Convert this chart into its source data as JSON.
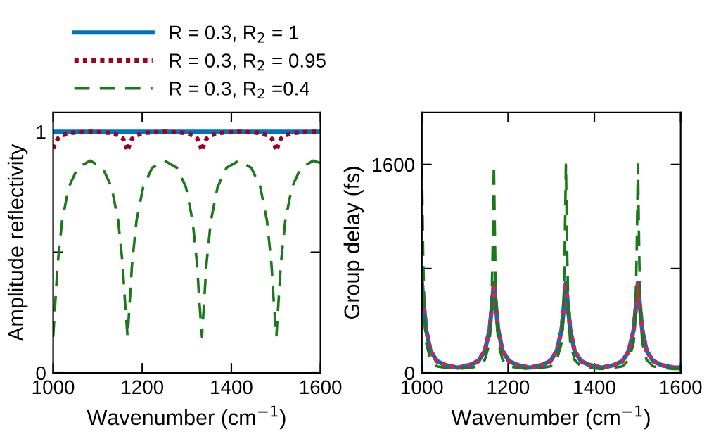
{
  "chart_data": [
    {
      "type": "line",
      "ylabel": "Amplitude reflectivity",
      "xlabel": "Wavenumber (cm$^{−1}$)",
      "xlim": [
        1000,
        1600
      ],
      "xticks": [
        1000,
        1200,
        1400,
        1600
      ],
      "ylim": [
        0,
        1.08
      ],
      "yticks": [
        0,
        {
          "value": 0.5,
          "label": null
        },
        1
      ],
      "grid": false,
      "legend": "top",
      "series": [
        {
          "name": "R = 0.3, R$_{2}$ = 1",
          "color": "#0070c0",
          "line_style": "solid",
          "x": [
            1000,
            1600
          ],
          "values": [
            1,
            1
          ]
        },
        {
          "name": "R = 0.3, R$_{2}$ = 0.95",
          "color": "#a00020",
          "line_style": "dotted",
          "x": [
            1000,
            1010,
            1020,
            1040,
            1083,
            1127,
            1147,
            1157,
            1162,
            1167,
            1172,
            1177,
            1187,
            1207,
            1250,
            1294,
            1314,
            1324,
            1329,
            1334,
            1339,
            1344,
            1354,
            1374,
            1417,
            1461,
            1481,
            1491,
            1496,
            1501,
            1506,
            1511,
            1521,
            1541,
            1584,
            1600
          ],
          "values": [
            0.93,
            0.97,
            0.985,
            0.995,
            1,
            0.995,
            0.985,
            0.97,
            0.95,
            0.92,
            0.95,
            0.97,
            0.985,
            0.995,
            1,
            0.995,
            0.985,
            0.97,
            0.95,
            0.92,
            0.95,
            0.97,
            0.985,
            0.995,
            1,
            0.995,
            0.985,
            0.97,
            0.95,
            0.92,
            0.95,
            0.97,
            0.985,
            0.995,
            1,
            1
          ]
        },
        {
          "name": "R = 0.3, R$_{2}$ =0.4",
          "color": "#1a7a1a",
          "line_style": "dashed",
          "x": [
            1000,
            1005,
            1010,
            1020,
            1035,
            1055,
            1083,
            1111,
            1131,
            1146,
            1156,
            1161,
            1167,
            1172,
            1177,
            1187,
            1202,
            1222,
            1250,
            1278,
            1298,
            1313,
            1323,
            1328,
            1334,
            1339,
            1344,
            1354,
            1369,
            1389,
            1417,
            1445,
            1465,
            1480,
            1490,
            1495,
            1501,
            1506,
            1511,
            1521,
            1536,
            1556,
            1584,
            1600
          ],
          "values": [
            0.15,
            0.3,
            0.45,
            0.63,
            0.77,
            0.85,
            0.88,
            0.85,
            0.77,
            0.63,
            0.45,
            0.3,
            0.15,
            0.3,
            0.45,
            0.63,
            0.77,
            0.85,
            0.88,
            0.85,
            0.77,
            0.63,
            0.45,
            0.3,
            0.15,
            0.3,
            0.45,
            0.63,
            0.77,
            0.85,
            0.88,
            0.85,
            0.77,
            0.63,
            0.45,
            0.3,
            0.15,
            0.3,
            0.45,
            0.63,
            0.77,
            0.85,
            0.88,
            0.87
          ]
        }
      ]
    },
    {
      "type": "line",
      "ylabel": "Group delay (fs)",
      "xlabel": "Wavenumber (cm$^{−1}$)",
      "xlim": [
        1000,
        1600
      ],
      "xticks": [
        1000,
        1200,
        1400,
        1600
      ],
      "ylim": [
        0,
        2000
      ],
      "yticks": [
        0,
        {
          "value": 800,
          "label": null
        },
        1600
      ],
      "grid": false,
      "series": [
        {
          "color": "#0070c0",
          "line_style": "solid",
          "x": [
            1000,
            1005,
            1010,
            1020,
            1035,
            1055,
            1083,
            1111,
            1131,
            1146,
            1157,
            1162,
            1167,
            1172,
            1177,
            1187,
            1202,
            1222,
            1250,
            1278,
            1298,
            1313,
            1324,
            1329,
            1334,
            1339,
            1344,
            1354,
            1369,
            1389,
            1417,
            1445,
            1465,
            1480,
            1491,
            1496,
            1501,
            1506,
            1511,
            1521,
            1536,
            1556,
            1584,
            1600
          ],
          "values": [
            690,
            500,
            330,
            170,
            90,
            60,
            40,
            60,
            90,
            170,
            330,
            500,
            690,
            500,
            330,
            170,
            90,
            60,
            40,
            60,
            90,
            170,
            330,
            500,
            690,
            500,
            330,
            170,
            90,
            60,
            40,
            60,
            90,
            170,
            330,
            500,
            690,
            500,
            330,
            170,
            90,
            60,
            40,
            40
          ]
        },
        {
          "color": "#e02040",
          "line_style": "dotted",
          "x": [
            1000,
            1005,
            1010,
            1020,
            1035,
            1055,
            1083,
            1111,
            1131,
            1146,
            1157,
            1162,
            1167,
            1172,
            1177,
            1187,
            1202,
            1222,
            1250,
            1278,
            1298,
            1313,
            1324,
            1329,
            1334,
            1339,
            1344,
            1354,
            1369,
            1389,
            1417,
            1445,
            1465,
            1480,
            1491,
            1496,
            1501,
            1506,
            1511,
            1521,
            1536,
            1556,
            1584,
            1600
          ],
          "values": [
            690,
            500,
            330,
            170,
            90,
            60,
            40,
            60,
            90,
            170,
            330,
            500,
            690,
            500,
            330,
            170,
            90,
            60,
            40,
            60,
            90,
            170,
            330,
            500,
            690,
            500,
            330,
            170,
            90,
            60,
            40,
            60,
            90,
            170,
            330,
            500,
            690,
            500,
            330,
            170,
            90,
            60,
            40,
            40
          ]
        },
        {
          "color": "#1a7a1a",
          "line_style": "dashed",
          "x": [
            1000,
            1003,
            1006,
            1010,
            1020,
            1035,
            1055,
            1083,
            1111,
            1131,
            1146,
            1157,
            1161,
            1164,
            1167,
            1170,
            1173,
            1177,
            1187,
            1202,
            1222,
            1250,
            1278,
            1298,
            1313,
            1324,
            1328,
            1331,
            1334,
            1337,
            1340,
            1344,
            1354,
            1369,
            1389,
            1417,
            1445,
            1465,
            1480,
            1491,
            1495,
            1498,
            1501,
            1504,
            1507,
            1511,
            1521,
            1536,
            1556,
            1584,
            1600
          ],
          "values": [
            1600,
            900,
            450,
            230,
            100,
            50,
            40,
            30,
            40,
            50,
            100,
            230,
            450,
            900,
            1600,
            900,
            450,
            230,
            100,
            50,
            40,
            30,
            40,
            50,
            100,
            230,
            450,
            900,
            1600,
            900,
            450,
            230,
            100,
            50,
            40,
            30,
            40,
            50,
            100,
            230,
            450,
            900,
            1600,
            900,
            450,
            230,
            100,
            50,
            40,
            30,
            30
          ]
        }
      ]
    }
  ]
}
